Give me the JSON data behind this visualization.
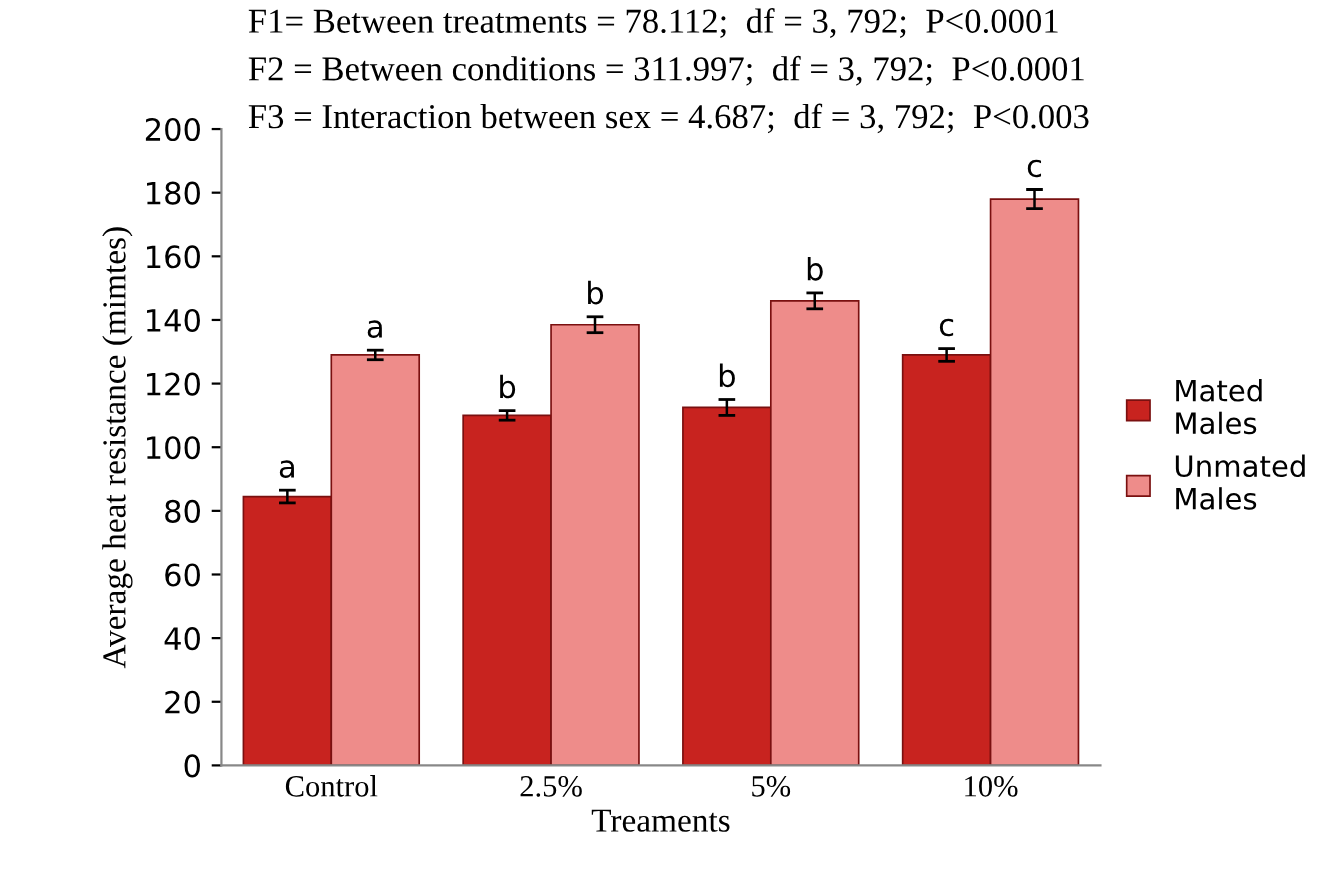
{
  "chart_data": {
    "type": "bar",
    "xlabel": "Treaments",
    "ylabel": "Average heat resistance (mimtes)",
    "annotations": [
      "F1= Between treatments = 78.112;  df = 3, 792;  P<0.0001",
      "F2 = Between conditions = 311.997;  df = 3, 792;  P<0.0001",
      "F3 = Interaction between sex = 4.687;  df = 3, 792;  P<0.003"
    ],
    "categories": [
      "Control",
      "2.5%",
      "5%",
      "10%"
    ],
    "series": [
      {
        "name": "Mated\nMales",
        "color": "#c8231f",
        "values": [
          84.5,
          110,
          112.5,
          129
        ],
        "errors": [
          2,
          1.5,
          2.5,
          2
        ],
        "value_labels": [
          "a",
          "b",
          "b",
          "c"
        ]
      },
      {
        "name": "Unmated\nMales",
        "color": "#ee8c8a",
        "values": [
          129,
          138.5,
          146,
          178
        ],
        "errors": [
          1.5,
          2.5,
          2.5,
          3
        ],
        "value_labels": [
          "a",
          "b",
          "b",
          "c"
        ]
      }
    ],
    "ylim": [
      0,
      200
    ],
    "yticks": [
      0,
      20,
      40,
      60,
      80,
      100,
      120,
      140,
      160,
      180,
      200
    ],
    "grid": false,
    "legend": "right"
  }
}
